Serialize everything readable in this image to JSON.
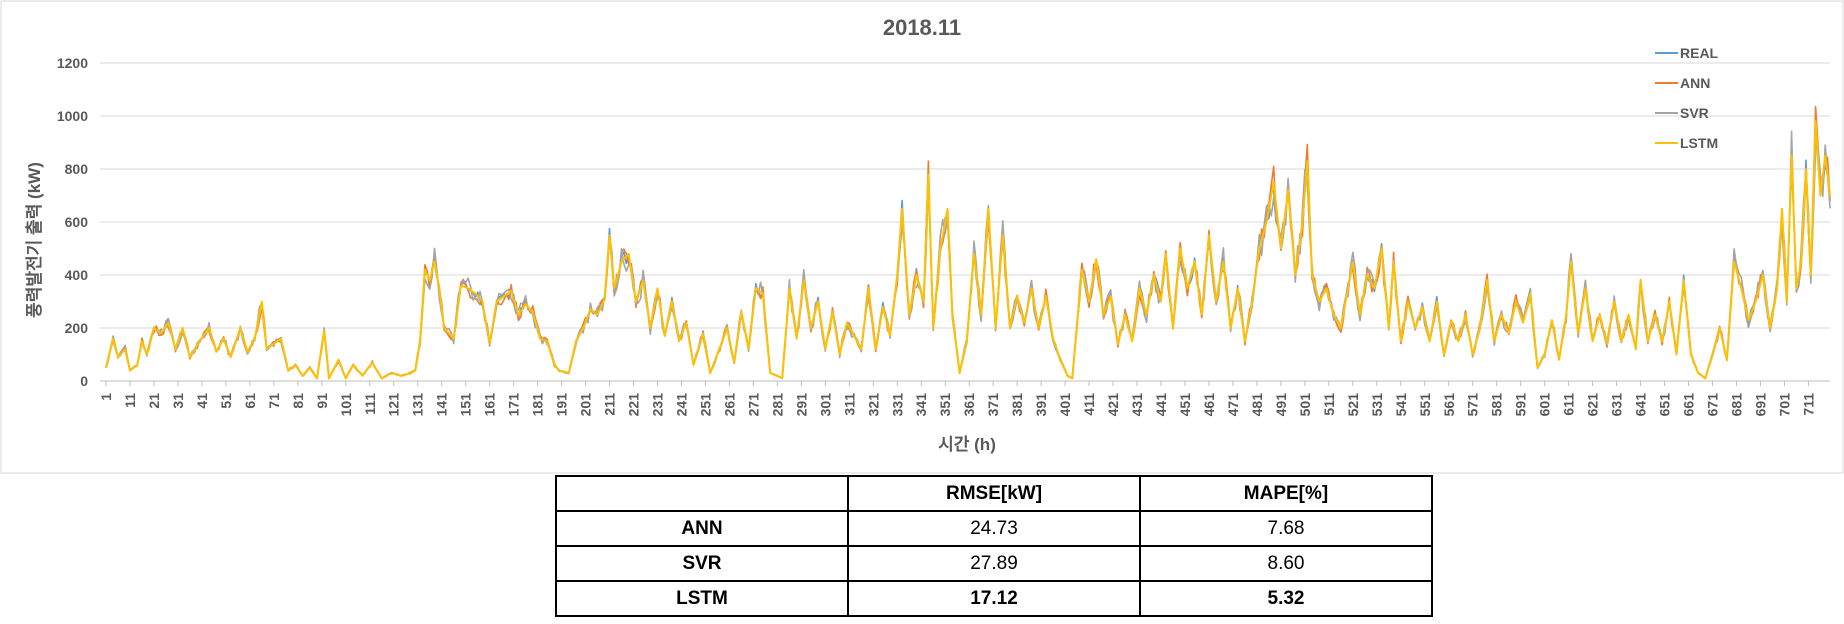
{
  "chart_data": {
    "type": "line",
    "title": "2018.11",
    "xlabel": "시간 (h)",
    "ylabel": "풍력발전기 출력 (kW)",
    "ylim": [
      0,
      1200
    ],
    "yticks": [
      0,
      200,
      400,
      600,
      800,
      1000,
      1200
    ],
    "xlim": [
      1,
      720
    ],
    "xticks": [
      1,
      11,
      21,
      31,
      41,
      51,
      61,
      71,
      81,
      91,
      101,
      111,
      121,
      131,
      141,
      151,
      161,
      171,
      181,
      191,
      201,
      211,
      221,
      231,
      241,
      251,
      261,
      271,
      281,
      291,
      301,
      311,
      321,
      331,
      341,
      351,
      361,
      371,
      381,
      391,
      401,
      411,
      421,
      431,
      441,
      451,
      461,
      471,
      481,
      491,
      501,
      511,
      521,
      531,
      541,
      551,
      561,
      571,
      581,
      591,
      601,
      611,
      621,
      631,
      641,
      651,
      661,
      671,
      681,
      691,
      701,
      711
    ],
    "grid": "horizontal",
    "legend_position": "top-right",
    "series": [
      {
        "name": "REAL",
        "color": "#5B9BD5"
      },
      {
        "name": "ANN",
        "color": "#ED7D31"
      },
      {
        "name": "SVR",
        "color": "#A5A5A5"
      },
      {
        "name": "LSTM",
        "color": "#FFC000"
      }
    ],
    "anchors": [
      [
        1,
        50
      ],
      [
        4,
        160
      ],
      [
        6,
        90
      ],
      [
        9,
        120
      ],
      [
        11,
        40
      ],
      [
        14,
        60
      ],
      [
        16,
        150
      ],
      [
        18,
        100
      ],
      [
        21,
        200
      ],
      [
        24,
        180
      ],
      [
        27,
        220
      ],
      [
        30,
        120
      ],
      [
        33,
        200
      ],
      [
        36,
        90
      ],
      [
        40,
        150
      ],
      [
        44,
        200
      ],
      [
        47,
        110
      ],
      [
        50,
        160
      ],
      [
        53,
        90
      ],
      [
        57,
        200
      ],
      [
        60,
        110
      ],
      [
        63,
        160
      ],
      [
        66,
        300
      ],
      [
        68,
        120
      ],
      [
        71,
        140
      ],
      [
        74,
        160
      ],
      [
        77,
        40
      ],
      [
        80,
        60
      ],
      [
        83,
        20
      ],
      [
        86,
        50
      ],
      [
        89,
        10
      ],
      [
        92,
        190
      ],
      [
        94,
        10
      ],
      [
        98,
        80
      ],
      [
        101,
        10
      ],
      [
        104,
        60
      ],
      [
        108,
        20
      ],
      [
        112,
        70
      ],
      [
        116,
        10
      ],
      [
        120,
        30
      ],
      [
        124,
        20
      ],
      [
        128,
        30
      ],
      [
        130,
        40
      ],
      [
        132,
        150
      ],
      [
        134,
        420
      ],
      [
        136,
        380
      ],
      [
        138,
        450
      ],
      [
        140,
        350
      ],
      [
        142,
        200
      ],
      [
        146,
        160
      ],
      [
        149,
        360
      ],
      [
        152,
        350
      ],
      [
        155,
        330
      ],
      [
        158,
        300
      ],
      [
        161,
        140
      ],
      [
        164,
        300
      ],
      [
        167,
        320
      ],
      [
        170,
        340
      ],
      [
        173,
        250
      ],
      [
        176,
        290
      ],
      [
        179,
        260
      ],
      [
        182,
        160
      ],
      [
        185,
        150
      ],
      [
        188,
        60
      ],
      [
        190,
        40
      ],
      [
        194,
        30
      ],
      [
        197,
        150
      ],
      [
        200,
        200
      ],
      [
        203,
        270
      ],
      [
        206,
        250
      ],
      [
        209,
        310
      ],
      [
        211,
        550
      ],
      [
        213,
        350
      ],
      [
        216,
        450
      ],
      [
        219,
        480
      ],
      [
        222,
        300
      ],
      [
        225,
        380
      ],
      [
        228,
        200
      ],
      [
        231,
        350
      ],
      [
        234,
        170
      ],
      [
        237,
        300
      ],
      [
        240,
        150
      ],
      [
        243,
        220
      ],
      [
        246,
        60
      ],
      [
        250,
        180
      ],
      [
        253,
        30
      ],
      [
        256,
        100
      ],
      [
        260,
        200
      ],
      [
        263,
        70
      ],
      [
        266,
        260
      ],
      [
        269,
        120
      ],
      [
        272,
        350
      ],
      [
        275,
        330
      ],
      [
        278,
        30
      ],
      [
        281,
        20
      ],
      [
        283,
        10
      ],
      [
        286,
        350
      ],
      [
        289,
        160
      ],
      [
        292,
        380
      ],
      [
        295,
        200
      ],
      [
        298,
        300
      ],
      [
        301,
        120
      ],
      [
        304,
        260
      ],
      [
        307,
        100
      ],
      [
        310,
        220
      ],
      [
        313,
        170
      ],
      [
        316,
        120
      ],
      [
        319,
        350
      ],
      [
        322,
        120
      ],
      [
        325,
        280
      ],
      [
        328,
        170
      ],
      [
        331,
        400
      ],
      [
        333,
        650
      ],
      [
        336,
        250
      ],
      [
        339,
        400
      ],
      [
        342,
        300
      ],
      [
        344,
        780
      ],
      [
        346,
        200
      ],
      [
        349,
        500
      ],
      [
        352,
        650
      ],
      [
        354,
        250
      ],
      [
        357,
        30
      ],
      [
        360,
        150
      ],
      [
        363,
        480
      ],
      [
        366,
        250
      ],
      [
        369,
        650
      ],
      [
        372,
        200
      ],
      [
        375,
        550
      ],
      [
        378,
        200
      ],
      [
        381,
        320
      ],
      [
        384,
        220
      ],
      [
        387,
        350
      ],
      [
        390,
        200
      ],
      [
        393,
        320
      ],
      [
        396,
        160
      ],
      [
        399,
        80
      ],
      [
        402,
        20
      ],
      [
        404,
        10
      ],
      [
        408,
        420
      ],
      [
        411,
        300
      ],
      [
        414,
        460
      ],
      [
        417,
        250
      ],
      [
        420,
        320
      ],
      [
        423,
        140
      ],
      [
        426,
        250
      ],
      [
        429,
        150
      ],
      [
        432,
        350
      ],
      [
        435,
        250
      ],
      [
        438,
        400
      ],
      [
        441,
        300
      ],
      [
        443,
        480
      ],
      [
        446,
        200
      ],
      [
        449,
        500
      ],
      [
        452,
        350
      ],
      [
        455,
        450
      ],
      [
        458,
        250
      ],
      [
        461,
        550
      ],
      [
        464,
        300
      ],
      [
        467,
        450
      ],
      [
        470,
        200
      ],
      [
        473,
        350
      ],
      [
        476,
        150
      ],
      [
        479,
        300
      ],
      [
        482,
        500
      ],
      [
        485,
        600
      ],
      [
        488,
        750
      ],
      [
        491,
        500
      ],
      [
        494,
        720
      ],
      [
        497,
        400
      ],
      [
        500,
        600
      ],
      [
        502,
        830
      ],
      [
        504,
        400
      ],
      [
        507,
        300
      ],
      [
        510,
        350
      ],
      [
        513,
        250
      ],
      [
        516,
        200
      ],
      [
        519,
        350
      ],
      [
        521,
        450
      ],
      [
        524,
        250
      ],
      [
        527,
        400
      ],
      [
        530,
        350
      ],
      [
        533,
        500
      ],
      [
        536,
        200
      ],
      [
        538,
        450
      ],
      [
        541,
        150
      ],
      [
        544,
        300
      ],
      [
        547,
        200
      ],
      [
        550,
        280
      ],
      [
        553,
        150
      ],
      [
        556,
        300
      ],
      [
        559,
        100
      ],
      [
        562,
        230
      ],
      [
        565,
        150
      ],
      [
        568,
        250
      ],
      [
        571,
        100
      ],
      [
        574,
        200
      ],
      [
        577,
        380
      ],
      [
        580,
        150
      ],
      [
        583,
        250
      ],
      [
        586,
        180
      ],
      [
        589,
        300
      ],
      [
        592,
        220
      ],
      [
        595,
        330
      ],
      [
        598,
        50
      ],
      [
        601,
        100
      ],
      [
        604,
        230
      ],
      [
        607,
        80
      ],
      [
        610,
        250
      ],
      [
        612,
        450
      ],
      [
        615,
        180
      ],
      [
        618,
        350
      ],
      [
        621,
        150
      ],
      [
        624,
        250
      ],
      [
        627,
        140
      ],
      [
        630,
        300
      ],
      [
        633,
        150
      ],
      [
        636,
        250
      ],
      [
        639,
        120
      ],
      [
        641,
        380
      ],
      [
        644,
        150
      ],
      [
        647,
        250
      ],
      [
        650,
        150
      ],
      [
        653,
        300
      ],
      [
        656,
        100
      ],
      [
        659,
        380
      ],
      [
        662,
        100
      ],
      [
        665,
        30
      ],
      [
        668,
        10
      ],
      [
        671,
        100
      ],
      [
        674,
        200
      ],
      [
        677,
        80
      ],
      [
        680,
        450
      ],
      [
        683,
        350
      ],
      [
        686,
        230
      ],
      [
        689,
        300
      ],
      [
        692,
        400
      ],
      [
        695,
        200
      ],
      [
        698,
        350
      ],
      [
        700,
        650
      ],
      [
        702,
        300
      ],
      [
        704,
        850
      ],
      [
        706,
        350
      ],
      [
        708,
        450
      ],
      [
        710,
        800
      ],
      [
        712,
        400
      ],
      [
        714,
        980
      ],
      [
        716,
        700
      ],
      [
        718,
        850
      ],
      [
        720,
        700
      ]
    ],
    "table": {
      "headers": [
        "",
        "RMSE[kW]",
        "MAPE[%]"
      ],
      "rows": [
        {
          "model": "ANN",
          "rmse": "24.73",
          "mape": "7.68"
        },
        {
          "model": "SVR",
          "rmse": "27.89",
          "mape": "8.60"
        },
        {
          "model": "LSTM",
          "rmse": "17.12",
          "mape": "5.32"
        }
      ]
    }
  }
}
